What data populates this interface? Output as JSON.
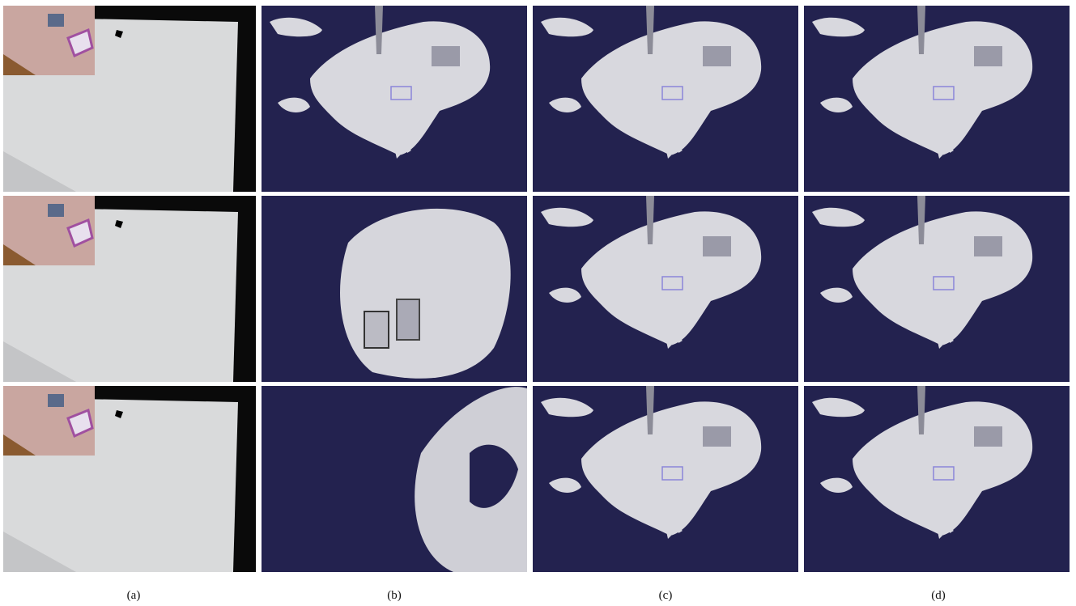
{
  "figure": {
    "panel_labels": [
      "(a)",
      "(b)",
      "(c)",
      "(d)"
    ]
  }
}
